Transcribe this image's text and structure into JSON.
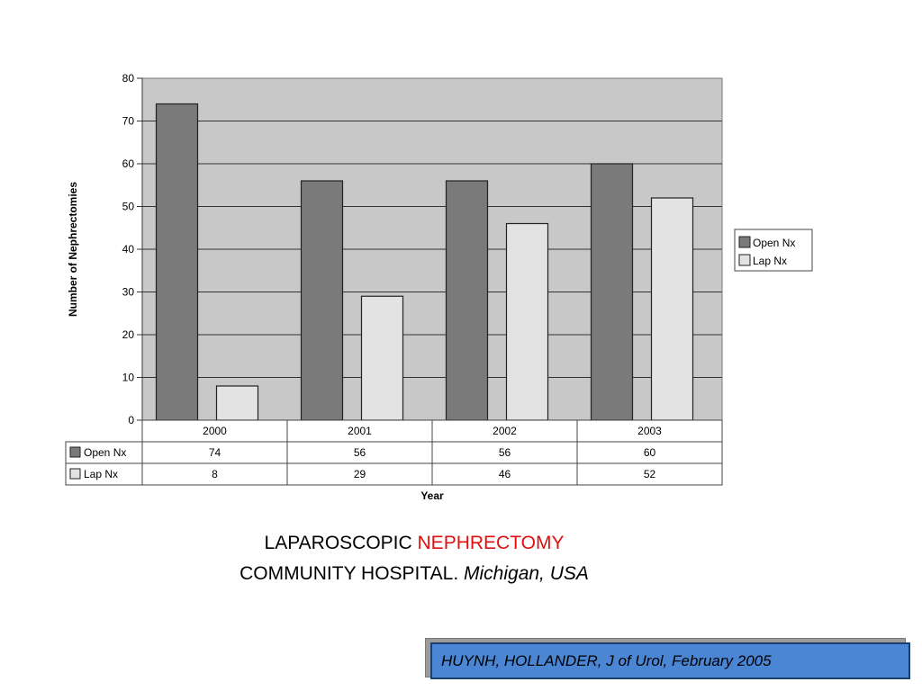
{
  "chart_data": {
    "type": "bar",
    "categories": [
      "2000",
      "2001",
      "2002",
      "2003"
    ],
    "series": [
      {
        "name": "Open Nx",
        "values": [
          74,
          56,
          56,
          60
        ],
        "color": "#7a7a7a"
      },
      {
        "name": "Lap Nx",
        "values": [
          8,
          29,
          46,
          52
        ],
        "color": "#e3e3e3"
      }
    ],
    "xlabel": "Year",
    "ylabel": "Number of Nephrectomies",
    "ylim": [
      0,
      80
    ],
    "yticks": [
      "0",
      "10",
      "20",
      "30",
      "40",
      "50",
      "60",
      "70",
      "80"
    ],
    "grid": true,
    "legend_position": "right",
    "data_table": true,
    "plot_background": "#c8c8c8"
  },
  "caption": {
    "line1_part1": "LAPAROSCOPIC ",
    "line1_part2": "NEPHRECTOMY",
    "line2_part1": "COMMUNITY HOSPITAL. ",
    "line2_part2": "Michigan, USA",
    "highlight_color": "#e01010"
  },
  "reference": {
    "text": "HUYNH, HOLLANDER, J of Urol, February 2005",
    "box_color": "#4a86d4"
  }
}
